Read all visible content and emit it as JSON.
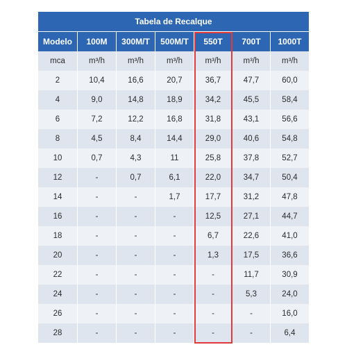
{
  "table": {
    "title": "Tabela de Recalque",
    "headers": [
      "Modelo",
      "100M",
      "300M/T",
      "500M/T",
      "550T",
      "700T",
      "1000T"
    ],
    "rows": [
      [
        "mca",
        "m³/h",
        "m³/h",
        "m³/h",
        "m³/h",
        "m³/h",
        "m³/h"
      ],
      [
        "2",
        "10,4",
        "16,6",
        "20,7",
        "36,7",
        "47,7",
        "60,0"
      ],
      [
        "4",
        "9,0",
        "14,8",
        "18,9",
        "34,2",
        "45,5",
        "58,4"
      ],
      [
        "6",
        "7,2",
        "12,2",
        "16,8",
        "31,8",
        "43,1",
        "56,6"
      ],
      [
        "8",
        "4,5",
        "8,4",
        "14,4",
        "29,0",
        "40,6",
        "54,8"
      ],
      [
        "10",
        "0,7",
        "4,3",
        "11",
        "25,8",
        "37,8",
        "52,7"
      ],
      [
        "12",
        "-",
        "0,7",
        "6,1",
        "22,0",
        "34,7",
        "50,4"
      ],
      [
        "14",
        "-",
        "-",
        "1,7",
        "17,7",
        "31,2",
        "47,8"
      ],
      [
        "16",
        "-",
        "-",
        "-",
        "12,5",
        "27,1",
        "44,7"
      ],
      [
        "18",
        "-",
        "-",
        "-",
        "6,7",
        "22,6",
        "41,0"
      ],
      [
        "20",
        "-",
        "-",
        "-",
        "1,3",
        "17,5",
        "36,6"
      ],
      [
        "22",
        "-",
        "-",
        "-",
        "-",
        "11,7",
        "30,9"
      ],
      [
        "24",
        "-",
        "-",
        "-",
        "-",
        "5,3",
        "24,0"
      ],
      [
        "26",
        "-",
        "-",
        "-",
        "-",
        "-",
        "16,0"
      ],
      [
        "28",
        "-",
        "-",
        "-",
        "-",
        "-",
        "6,4"
      ]
    ],
    "colors": {
      "header_bg": "#2d67b3",
      "row_odd": "#dfe5ef",
      "row_even": "#eef2f7",
      "highlight_border": "#e03a3a"
    },
    "highlighted_column": "550T"
  }
}
